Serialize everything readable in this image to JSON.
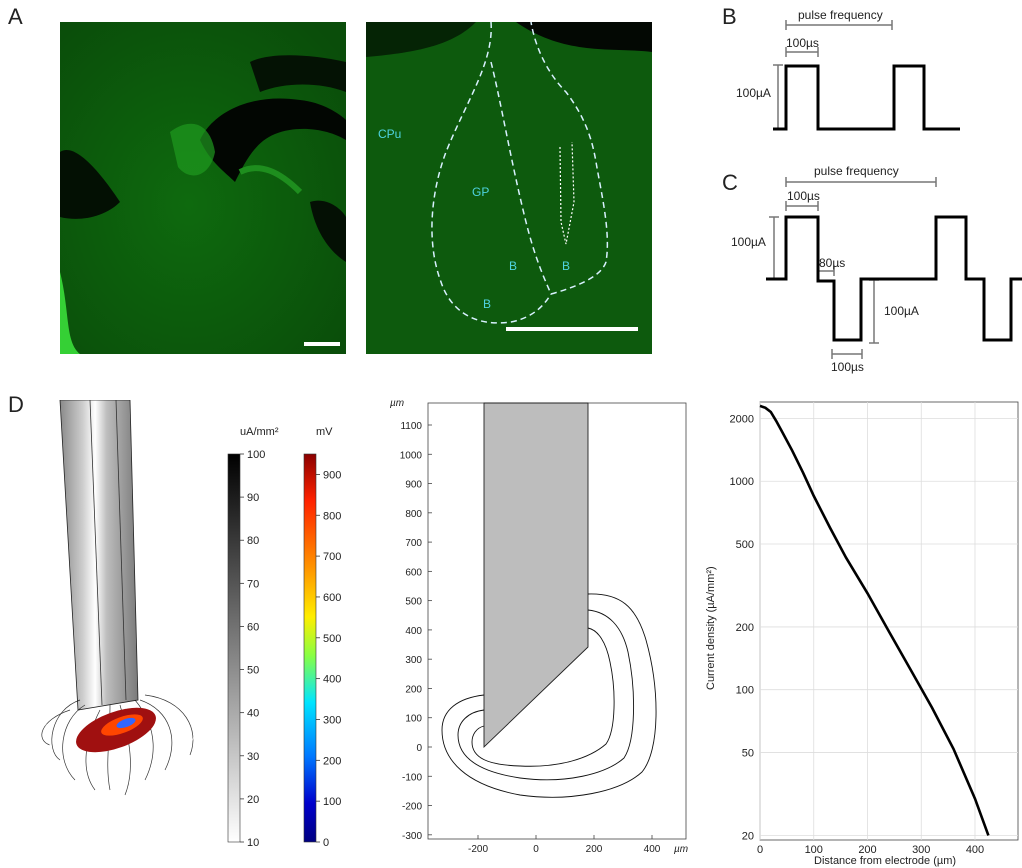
{
  "panels": {
    "A": {
      "label": "A",
      "left_image": {
        "description_icon": "coronal-brain-section-fluorescence"
      },
      "right_image": {
        "regions": [
          "CPu",
          "GP",
          "B",
          "B",
          "B"
        ]
      },
      "colors": {
        "tissue": "#0f6e0f",
        "bright": "#2fd12f",
        "background": "#050505",
        "outline": "#d8f1ff",
        "region_label": "#4fd4e0"
      }
    },
    "B": {
      "label": "B",
      "pulse_frequency_label": "pulse frequency",
      "width_label": "100µs",
      "amp_label": "100µA"
    },
    "C": {
      "label": "C",
      "pulse_frequency_label": "pulse frequency",
      "width_label": "100µs",
      "gap_label": "80µs",
      "amp_pos_label": "100µA",
      "amp_neg_label": "100µA",
      "neg_width_label": "100µs"
    },
    "D": {
      "label": "D",
      "colorbar_current": {
        "unit_label": "uA/mm²",
        "ticks": [
          "100",
          "90",
          "80",
          "70",
          "60",
          "50",
          "40",
          "30",
          "20",
          "10"
        ],
        "range": [
          10,
          100
        ],
        "colors": [
          "#000000",
          "#ffffff"
        ]
      },
      "colorbar_voltage": {
        "unit_label": "mV",
        "ticks": [
          "900",
          "800",
          "700",
          "600",
          "500",
          "400",
          "300",
          "200",
          "100",
          "0"
        ],
        "range": [
          0,
          950
        ],
        "colors": [
          "#8b0000",
          "#ff2200",
          "#ff9900",
          "#ffee00",
          "#88ff44",
          "#00e5ff",
          "#0077ff",
          "#0000cc",
          "#000080"
        ]
      },
      "geometry_plot": {
        "y_unit": "µm",
        "x_unit": "µm",
        "y_ticks": [
          "1100",
          "1000",
          "900",
          "800",
          "700",
          "600",
          "500",
          "400",
          "300",
          "200",
          "100",
          "0",
          "-100",
          "-200",
          "-300"
        ],
        "x_ticks": [
          "-200",
          "0",
          "200",
          "400"
        ]
      }
    }
  },
  "chart_data": {
    "type": "line",
    "title": "",
    "xlabel": "Distance from electrode (µm)",
    "ylabel": "Current density (µA/mm²)",
    "y_scale": "log",
    "xlim": [
      0,
      480
    ],
    "ylim": [
      19,
      2400
    ],
    "x_ticks": [
      "0",
      "100",
      "200",
      "300",
      "400"
    ],
    "y_ticks": [
      "2000",
      "1000",
      "500",
      "200",
      "100",
      "50",
      "20"
    ],
    "grid": true,
    "series": [
      {
        "x": [
          0,
          10,
          20,
          30,
          40,
          60,
          80,
          100,
          130,
          160,
          200,
          240,
          280,
          320,
          360,
          400,
          425
        ],
        "y": [
          2300,
          2250,
          2150,
          1950,
          1750,
          1400,
          1100,
          850,
          600,
          430,
          290,
          190,
          125,
          82,
          52,
          30,
          20
        ]
      }
    ]
  }
}
